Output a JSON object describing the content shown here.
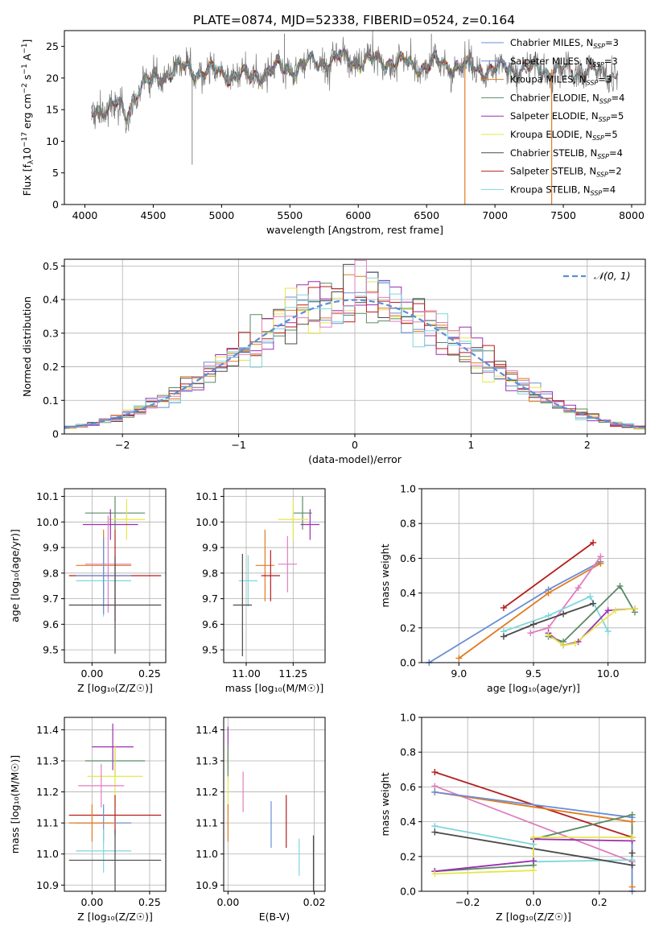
{
  "figure_title": "PLATE=0874, MJD=52338, FIBERID=0524, z=0.164",
  "colors": {
    "Chabrier MILES": "#6b8ed6",
    "Salpeter MILES": "#6b8ed6",
    "Kroupa MILES": "#e07b1f",
    "Chabrier ELODIE": "#5a8a66",
    "Salpeter ELODIE": "#9b2fb0",
    "Kroupa ELODIE": "#e6e64a",
    "Chabrier STELIB": "#4a4a4a",
    "Salpeter STELIB": "#b51e1e",
    "Kroupa STELIB": "#7fd6dc",
    "gaussian": "#5b8fd6",
    "pink": "#e07fbf",
    "grid": "#b0b0b0"
  },
  "chart_data": [
    {
      "id": "spectrum",
      "type": "line",
      "title": "PLATE=0874, MJD=52338, FIBERID=0524, z=0.164",
      "xlabel": "wavelength [Angstrom, rest frame]",
      "ylabel_main": "Flux [f",
      "ylabel_parts": [
        "Flux [f",
        "λ",
        "10",
        "−17",
        " erg cm",
        "−2",
        " s",
        "−1",
        " A",
        "−1",
        "]"
      ],
      "xlim": [
        3850,
        8100
      ],
      "ylim": [
        0,
        27.5
      ],
      "xticks": [
        4000,
        4500,
        5000,
        5500,
        6000,
        6500,
        7000,
        7500,
        8000
      ],
      "yticks": [
        0,
        5,
        10,
        15,
        20,
        25
      ],
      "grid": false,
      "legend_position": "top-right",
      "legend": [
        {
          "name": "Chabrier MILES",
          "n": "3"
        },
        {
          "name": "Salpeter MILES",
          "n": "3"
        },
        {
          "name": "Kroupa MILES",
          "n": "3"
        },
        {
          "name": "Chabrier ELODIE",
          "n": "4"
        },
        {
          "name": "Salpeter ELODIE",
          "n": "5"
        },
        {
          "name": "Kroupa ELODIE",
          "n": "5"
        },
        {
          "name": "Chabrier STELIB",
          "n": "4"
        },
        {
          "name": "Salpeter STELIB",
          "n": "2"
        },
        {
          "name": "Kroupa STELIB",
          "n": "4"
        }
      ],
      "legend_nsub": "SSP",
      "continuum_x": [
        4050,
        4150,
        4250,
        4300,
        4350,
        4400,
        4500,
        4600,
        4700,
        4800,
        4900,
        5000,
        5100,
        5200,
        5300,
        5400,
        5500,
        5600,
        5700,
        5800,
        5900,
        6000,
        6100,
        6200,
        6300,
        6400,
        6500,
        6600,
        6700,
        6800,
        6900,
        7000,
        7100,
        7200,
        7300,
        7400,
        7500,
        7600,
        7700,
        7800,
        7900
      ],
      "continuum_y": [
        14.5,
        15.5,
        15.5,
        13.5,
        17,
        18.5,
        19.5,
        21,
        21.5,
        21.2,
        21,
        20.8,
        20.5,
        20,
        20.8,
        21.5,
        21.5,
        22,
        22.5,
        22.8,
        23,
        22.8,
        22.5,
        22.8,
        22.5,
        22,
        22,
        22.2,
        22,
        21.5,
        21.5,
        21.2,
        21.8,
        21.5,
        21.5,
        21.4,
        21.2,
        21.1,
        21,
        20.8,
        20.6
      ],
      "spikes": [
        {
          "x": 4785,
          "y": 6.3
        },
        {
          "x": 5460,
          "y": 27.0
        },
        {
          "x": 6535,
          "y": 27.0
        }
      ],
      "cutoffs": [
        {
          "series": "Kroupa MILES",
          "x": 6780
        },
        {
          "series": "Kroupa MILES",
          "x": 7415
        }
      ]
    },
    {
      "id": "residuals",
      "type": "area",
      "xlabel": "(data-model)/error",
      "ylabel": "Normed distribution",
      "xlim": [
        -2.5,
        2.5
      ],
      "ylim": [
        0,
        0.52
      ],
      "xticks": [
        -2,
        -1,
        0,
        1,
        2
      ],
      "xtick_labels": [
        "−2",
        "−1",
        "0",
        "1",
        "2"
      ],
      "yticks": [
        0,
        0.1,
        0.2,
        0.3,
        0.4,
        0.5
      ],
      "grid": true,
      "legend_position": "top-right",
      "gaussian_label": "𝒩(0, 1)",
      "bin_width": 0.1
    },
    {
      "id": "age-vs-z",
      "type": "scatter",
      "xlabel": "Z [log₁₀(Z/Z☉)]",
      "ylabel": "age  [log₁₀(age/yr)]",
      "xlim": [
        -0.12,
        0.32
      ],
      "ylim": [
        9.45,
        10.13
      ],
      "xticks": [
        0,
        0.25
      ],
      "xtick_labels": [
        "0.00",
        "0.25"
      ],
      "yticks": [
        9.5,
        9.6,
        9.7,
        9.8,
        9.9,
        10.0,
        10.1
      ],
      "ytick_labels": [
        "9.5",
        "9.6",
        "9.7",
        "9.8",
        "9.9",
        "10.0",
        "10.1"
      ],
      "grid": true,
      "points": [
        {
          "series": "Chabrier ELODIE",
          "x": 0.1,
          "xerr": 0.13,
          "y": 10.035,
          "yerr": 0.065
        },
        {
          "series": "Kroupa ELODIE",
          "x": 0.15,
          "xerr": 0.08,
          "y": 10.01,
          "yerr": 0.08
        },
        {
          "series": "Salpeter ELODIE",
          "x": 0.08,
          "xerr": 0.12,
          "y": 9.99,
          "yerr": 0.06
        },
        {
          "series": "Kroupa MILES",
          "x": 0.05,
          "xerr": 0.12,
          "y": 9.83,
          "yerr": 0.14
        },
        {
          "series": "pink",
          "x": 0.07,
          "xerr": 0.1,
          "y": 9.835,
          "yerr": 0.19
        },
        {
          "series": "Kroupa STELIB",
          "x": 0.05,
          "xerr": 0.12,
          "y": 9.77,
          "yerr": 0.14
        },
        {
          "series": "Salpeter STELIB",
          "x": 0.1,
          "xerr": 0.2,
          "y": 9.79,
          "yerr": 0.18
        },
        {
          "series": "Chabrier MILES",
          "x": 0.05,
          "xerr": 0.12,
          "y": 9.79,
          "yerr": 0.15
        },
        {
          "series": "Chabrier STELIB",
          "x": 0.1,
          "xerr": 0.2,
          "y": 9.675,
          "yerr": 0.19
        }
      ]
    },
    {
      "id": "age-vs-mass",
      "type": "scatter",
      "xlabel": "mass [log₁₀(M/M☉)]",
      "ylabel": "",
      "xlim": [
        10.88,
        11.42
      ],
      "ylim": [
        9.45,
        10.13
      ],
      "xticks": [
        11.0,
        11.25
      ],
      "xtick_labels": [
        "11.00",
        "11.25"
      ],
      "yticks": [
        9.5,
        9.6,
        9.7,
        9.8,
        9.9,
        10.0,
        10.1
      ],
      "ytick_labels": [
        "9.5",
        "9.6",
        "9.7",
        "9.8",
        "9.9",
        "10.0",
        "10.1"
      ],
      "grid": true,
      "points": [
        {
          "series": "Chabrier ELODIE",
          "x": 11.3,
          "xerr": 0.05,
          "y": 10.035,
          "yerr": 0.065
        },
        {
          "series": "Kroupa ELODIE",
          "x": 11.25,
          "xerr": 0.08,
          "y": 10.01,
          "yerr": 0.08
        },
        {
          "series": "Salpeter ELODIE",
          "x": 11.34,
          "xerr": 0.05,
          "y": 9.99,
          "yerr": 0.06
        },
        {
          "series": "Kroupa MILES",
          "x": 11.1,
          "xerr": 0.05,
          "y": 9.83,
          "yerr": 0.14
        },
        {
          "series": "pink",
          "x": 11.22,
          "xerr": 0.05,
          "y": 9.835,
          "yerr": 0.11
        },
        {
          "series": "Salpeter STELIB",
          "x": 11.13,
          "xerr": 0.05,
          "y": 9.79,
          "yerr": 0.1
        },
        {
          "series": "Kroupa STELIB",
          "x": 11.01,
          "xerr": 0.05,
          "y": 9.77,
          "yerr": 0.1
        },
        {
          "series": "Chabrier STELIB",
          "x": 10.98,
          "xerr": 0.05,
          "y": 9.675,
          "yerr": 0.2
        }
      ]
    },
    {
      "id": "weight-vs-age",
      "type": "line",
      "xlabel": "age  [log₁₀(age/yr)]",
      "ylabel": "mass weight",
      "xlim": [
        8.75,
        10.25
      ],
      "ylim": [
        0,
        1.0
      ],
      "xticks": [
        9.0,
        9.5,
        10.0
      ],
      "xtick_labels": [
        "9.0",
        "9.5",
        "10.0"
      ],
      "yticks": [
        0,
        0.2,
        0.4,
        0.6,
        0.8,
        1.0
      ],
      "ytick_labels": [
        "0.0",
        "0.2",
        "0.4",
        "0.6",
        "0.8",
        "1.0"
      ],
      "grid": true,
      "series": [
        {
          "name": "Salpeter STELIB",
          "x": [
            9.3,
            9.9
          ],
          "y": [
            0.315,
            0.69
          ]
        },
        {
          "name": "Chabrier MILES",
          "x": [
            8.8,
            9.6,
            9.95
          ],
          "y": [
            0.0,
            0.42,
            0.58
          ]
        },
        {
          "name": "Kroupa MILES",
          "x": [
            9.0,
            9.6,
            9.95
          ],
          "y": [
            0.025,
            0.4,
            0.57
          ]
        },
        {
          "name": "pink",
          "x": [
            9.48,
            9.6,
            9.8,
            9.95
          ],
          "y": [
            0.17,
            0.2,
            0.43,
            0.61
          ]
        },
        {
          "name": "Kroupa STELIB",
          "x": [
            9.3,
            9.6,
            9.88,
            10.0
          ],
          "y": [
            0.18,
            0.27,
            0.38,
            0.18
          ]
        },
        {
          "name": "Chabrier STELIB",
          "x": [
            9.3,
            9.5,
            9.7,
            9.9
          ],
          "y": [
            0.15,
            0.22,
            0.28,
            0.34
          ]
        },
        {
          "name": "Chabrier ELODIE",
          "x": [
            9.6,
            9.7,
            10.08,
            10.18
          ],
          "y": [
            0.15,
            0.12,
            0.44,
            0.29
          ]
        },
        {
          "name": "Salpeter ELODIE",
          "x": [
            9.6,
            9.7,
            9.8,
            10.0,
            10.18
          ],
          "y": [
            0.17,
            0.1,
            0.12,
            0.3,
            0.31
          ]
        },
        {
          "name": "Kroupa ELODIE",
          "x": [
            9.6,
            9.7,
            9.78,
            10.05,
            10.18
          ],
          "y": [
            0.16,
            0.1,
            0.11,
            0.3,
            0.31
          ]
        }
      ]
    },
    {
      "id": "mass-vs-z",
      "type": "scatter",
      "xlabel": "Z [log₁₀(Z/Z☉)]",
      "ylabel": "mass [log₁₀(M/M☉)]",
      "xlim": [
        -0.12,
        0.32
      ],
      "ylim": [
        10.88,
        11.44
      ],
      "xticks": [
        0,
        0.25
      ],
      "xtick_labels": [
        "0.00",
        "0.25"
      ],
      "yticks": [
        10.9,
        11.0,
        11.1,
        11.2,
        11.3,
        11.4
      ],
      "ytick_labels": [
        "10.9",
        "11.0",
        "11.1",
        "11.2",
        "11.3",
        "11.4"
      ],
      "grid": true,
      "points": [
        {
          "series": "Salpeter ELODIE",
          "x": 0.09,
          "xerr": 0.09,
          "y": 11.345,
          "yerr": 0.075
        },
        {
          "series": "Chabrier ELODIE",
          "x": 0.1,
          "xerr": 0.13,
          "y": 11.3,
          "yerr": 0.05
        },
        {
          "series": "Kroupa ELODIE",
          "x": 0.1,
          "xerr": 0.12,
          "y": 11.25,
          "yerr": 0.1
        },
        {
          "series": "pink",
          "x": 0.04,
          "xerr": 0.1,
          "y": 11.22,
          "yerr": 0.07
        },
        {
          "series": "Salpeter STELIB",
          "x": 0.1,
          "xerr": 0.2,
          "y": 11.125,
          "yerr": 0.065
        },
        {
          "series": "Chabrier MILES",
          "x": 0.05,
          "xerr": 0.12,
          "y": 11.1,
          "yerr": 0.06
        },
        {
          "series": "Kroupa MILES",
          "x": 0.0,
          "xerr": 0.1,
          "y": 11.1,
          "yerr": 0.06
        },
        {
          "series": "Kroupa STELIB",
          "x": 0.05,
          "xerr": 0.12,
          "y": 11.01,
          "yerr": 0.07
        },
        {
          "series": "Chabrier STELIB",
          "x": 0.1,
          "xerr": 0.2,
          "y": 10.98,
          "yerr": 0.1
        }
      ]
    },
    {
      "id": "mass-vs-ebv",
      "type": "scatter",
      "xlabel": "E(B-V)",
      "ylabel": "",
      "xlim": [
        -0.001,
        0.0225
      ],
      "ylim": [
        10.88,
        11.44
      ],
      "xticks": [
        0,
        0.02
      ],
      "xtick_labels": [
        "0.00",
        "0.02"
      ],
      "yticks": [
        10.9,
        11.0,
        11.1,
        11.2,
        11.3,
        11.4
      ],
      "ytick_labels": [
        "10.9",
        "11.0",
        "11.1",
        "11.2",
        "11.3",
        "11.4"
      ],
      "grid": true,
      "points": [
        {
          "series": "Salpeter ELODIE",
          "x": 0.0,
          "xerr": 0,
          "y": 11.34,
          "yerr": 0.07
        },
        {
          "series": "Kroupa ELODIE",
          "x": 0.0,
          "xerr": 0,
          "y": 11.25,
          "yerr": 0.1
        },
        {
          "series": "Chabrier ELODIE",
          "x": 0.0,
          "xerr": 0,
          "y": 11.3,
          "yerr": 0.05
        },
        {
          "series": "Kroupa MILES",
          "x": 0.0,
          "xerr": 0,
          "y": 11.1,
          "yerr": 0.06
        },
        {
          "series": "pink",
          "x": 0.0035,
          "xerr": 0,
          "y": 11.2,
          "yerr": 0.065
        },
        {
          "series": "Chabrier MILES",
          "x": 0.01,
          "xerr": 0,
          "y": 11.095,
          "yerr": 0.075
        },
        {
          "series": "Salpeter STELIB",
          "x": 0.0135,
          "xerr": 0,
          "y": 11.105,
          "yerr": 0.085
        },
        {
          "series": "Kroupa STELIB",
          "x": 0.0165,
          "xerr": 0,
          "y": 10.99,
          "yerr": 0.06
        },
        {
          "series": "Chabrier STELIB",
          "x": 0.0198,
          "xerr": 0,
          "y": 10.97,
          "yerr": 0.09
        }
      ]
    },
    {
      "id": "weight-vs-z",
      "type": "line",
      "xlabel": "Z [log₁₀(Z/Z☉)]",
      "ylabel": "mass weight",
      "xlim": [
        -0.34,
        0.34
      ],
      "ylim": [
        0,
        1.0
      ],
      "xticks": [
        -0.2,
        0.0,
        0.2
      ],
      "xtick_labels": [
        "−0.2",
        "0.0",
        "0.2"
      ],
      "yticks": [
        0,
        0.2,
        0.4,
        0.6,
        0.8,
        1.0
      ],
      "ytick_labels": [
        "0.0",
        "0.2",
        "0.4",
        "0.6",
        "0.8",
        "1.0"
      ],
      "grid": true,
      "series": [
        {
          "name": "Salpeter STELIB",
          "x": [
            -0.3,
            0.3
          ],
          "y": [
            0.685,
            0.31
          ]
        },
        {
          "name": "pink",
          "x": [
            -0.3,
            0.3
          ],
          "y": [
            0.605,
            0.17
          ]
        },
        {
          "name": "Kroupa MILES",
          "x": [
            -0.3,
            0.3,
            0.3
          ],
          "y": [
            0.57,
            0.4,
            0.025
          ]
        },
        {
          "name": "Chabrier MILES",
          "x": [
            -0.3,
            0.3,
            0.3
          ],
          "y": [
            0.57,
            0.425,
            0.0
          ]
        },
        {
          "name": "Kroupa STELIB",
          "x": [
            -0.3,
            0.0,
            0.0,
            0.3
          ],
          "y": [
            0.375,
            0.27,
            0.17,
            0.18
          ]
        },
        {
          "name": "Chabrier STELIB",
          "x": [
            -0.3,
            0.3,
            0.3
          ],
          "y": [
            0.34,
            0.15,
            0.22
          ]
        },
        {
          "name": "Chabrier ELODIE",
          "x": [
            -0.3,
            0.0,
            0.0,
            0.3,
            0.3
          ],
          "y": [
            0.115,
            0.15,
            0.3,
            0.44,
            0.29
          ]
        },
        {
          "name": "Salpeter ELODIE",
          "x": [
            -0.3,
            0.0,
            0.0,
            0.3
          ],
          "y": [
            0.115,
            0.175,
            0.3,
            0.29
          ]
        },
        {
          "name": "Kroupa ELODIE",
          "x": [
            -0.3,
            0.0,
            0.0,
            0.3
          ],
          "y": [
            0.1,
            0.12,
            0.31,
            0.31
          ]
        }
      ]
    }
  ]
}
